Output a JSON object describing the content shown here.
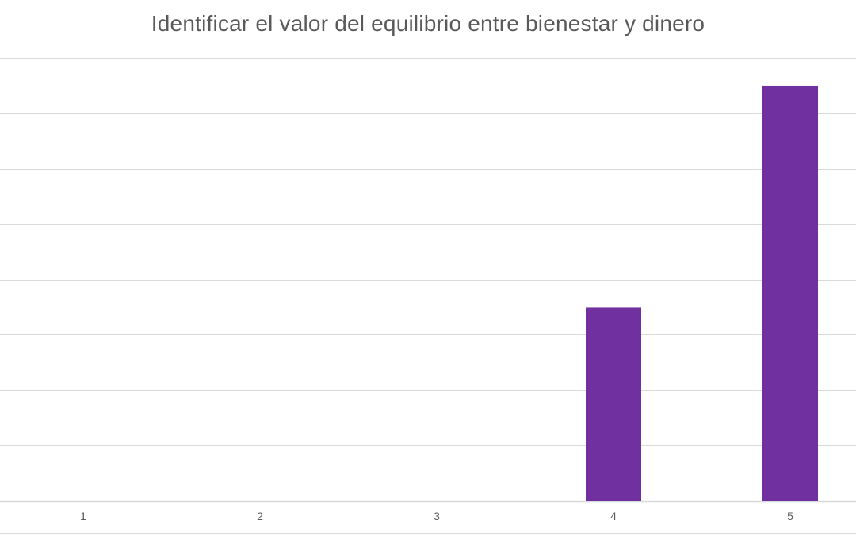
{
  "chart_data": {
    "type": "bar",
    "title": "Identificar el valor del equilibrio entre bienestar y dinero",
    "xlabel": "",
    "ylabel": "",
    "categories": [
      "1",
      "2",
      "3",
      "4",
      "5"
    ],
    "values": [
      0,
      0,
      0,
      3.5,
      7.5
    ],
    "ylim": [
      0,
      8
    ],
    "y_gridlines": [
      0,
      1,
      2,
      3,
      4,
      5,
      6,
      7,
      8
    ],
    "grid": true,
    "legend": "none",
    "bar_color": "#7030A0",
    "grid_color": "#D9D9D9"
  }
}
